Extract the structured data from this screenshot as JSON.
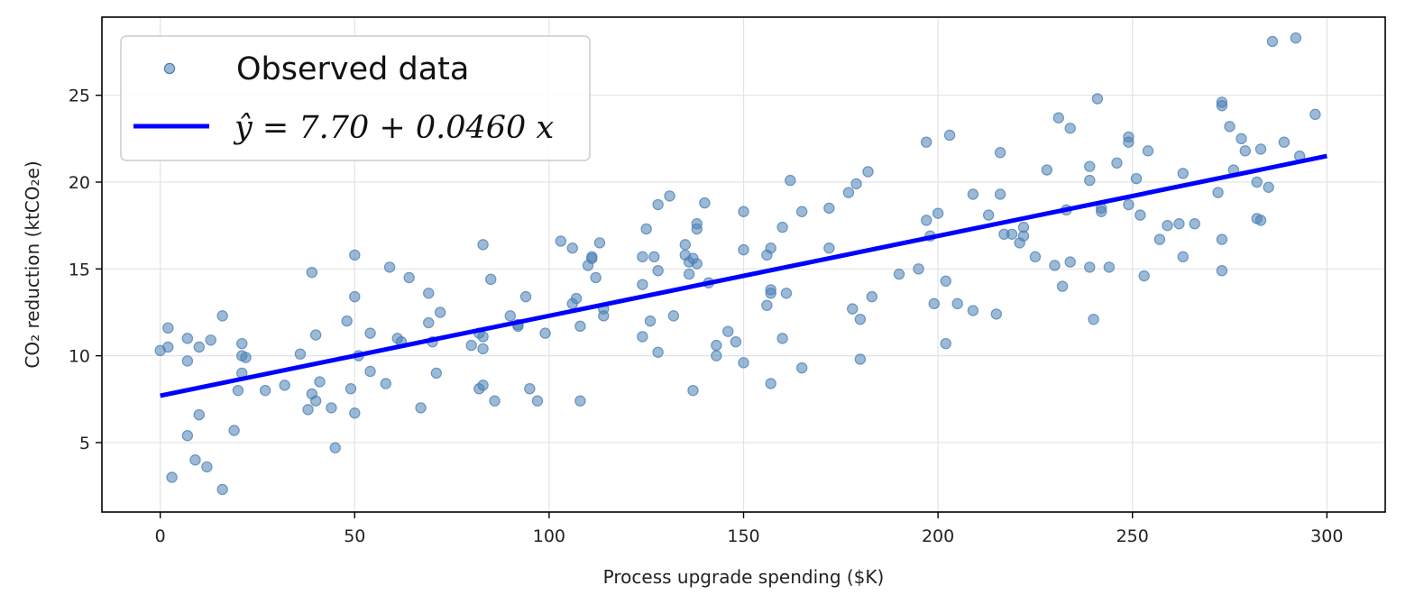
{
  "chart_data": {
    "type": "scatter",
    "xlabel": "Process upgrade spending ($K)",
    "ylabel": "CO₂ reduction (ktCO₂e)",
    "xlim": [
      -15,
      315
    ],
    "ylim": [
      1,
      29.5
    ],
    "xticks": [
      0,
      50,
      100,
      150,
      200,
      250,
      300
    ],
    "yticks": [
      5,
      10,
      15,
      20,
      25
    ],
    "grid": true,
    "legend_position": "top-left",
    "colors": {
      "points": "#4a7fb5",
      "fit": "#0000ff"
    },
    "series": [
      {
        "name": "Observed data",
        "kind": "scatter",
        "points": [
          [
            0,
            10.3
          ],
          [
            2,
            10.5
          ],
          [
            2,
            11.6
          ],
          [
            3,
            3.0
          ],
          [
            7,
            11.0
          ],
          [
            7,
            9.7
          ],
          [
            7,
            5.4
          ],
          [
            9,
            4.0
          ],
          [
            10,
            6.6
          ],
          [
            10,
            10.5
          ],
          [
            12,
            3.6
          ],
          [
            13,
            10.9
          ],
          [
            16,
            2.3
          ],
          [
            16,
            12.3
          ],
          [
            19,
            5.7
          ],
          [
            20,
            8.0
          ],
          [
            21,
            10.7
          ],
          [
            21,
            9.0
          ],
          [
            21,
            10.0
          ],
          [
            22,
            9.9
          ],
          [
            27,
            8.0
          ],
          [
            32,
            8.3
          ],
          [
            36,
            10.1
          ],
          [
            38,
            6.9
          ],
          [
            39,
            7.8
          ],
          [
            39,
            14.8
          ],
          [
            40,
            7.4
          ],
          [
            40,
            11.2
          ],
          [
            41,
            8.5
          ],
          [
            44,
            7.0
          ],
          [
            45,
            4.7
          ],
          [
            48,
            12.0
          ],
          [
            49,
            8.1
          ],
          [
            50,
            6.7
          ],
          [
            50,
            13.4
          ],
          [
            50,
            15.8
          ],
          [
            51,
            10.0
          ],
          [
            54,
            11.3
          ],
          [
            54,
            9.1
          ],
          [
            58,
            8.4
          ],
          [
            59,
            15.1
          ],
          [
            61,
            11.0
          ],
          [
            62,
            10.8
          ],
          [
            64,
            14.5
          ],
          [
            67,
            7.0
          ],
          [
            69,
            13.6
          ],
          [
            69,
            11.9
          ],
          [
            70,
            10.8
          ],
          [
            71,
            9.0
          ],
          [
            72,
            12.5
          ],
          [
            80,
            10.6
          ],
          [
            82,
            8.1
          ],
          [
            82,
            11.3
          ],
          [
            83,
            16.4
          ],
          [
            83,
            11.1
          ],
          [
            83,
            8.3
          ],
          [
            83,
            10.4
          ],
          [
            85,
            14.4
          ],
          [
            86,
            7.4
          ],
          [
            90,
            12.3
          ],
          [
            92,
            11.8
          ],
          [
            92,
            11.7
          ],
          [
            94,
            13.4
          ],
          [
            95,
            8.1
          ],
          [
            97,
            7.4
          ],
          [
            99,
            11.3
          ],
          [
            103,
            16.6
          ],
          [
            106,
            13.0
          ],
          [
            106,
            16.2
          ],
          [
            107,
            13.3
          ],
          [
            108,
            11.7
          ],
          [
            108,
            7.4
          ],
          [
            110,
            15.2
          ],
          [
            111,
            15.7
          ],
          [
            111,
            15.6
          ],
          [
            112,
            14.5
          ],
          [
            113,
            16.5
          ],
          [
            114,
            12.3
          ],
          [
            114,
            12.7
          ],
          [
            124,
            14.1
          ],
          [
            124,
            11.1
          ],
          [
            124,
            15.7
          ],
          [
            125,
            17.3
          ],
          [
            126,
            12.0
          ],
          [
            127,
            15.7
          ],
          [
            128,
            18.7
          ],
          [
            128,
            10.2
          ],
          [
            128,
            14.9
          ],
          [
            131,
            19.2
          ],
          [
            132,
            12.3
          ],
          [
            135,
            16.4
          ],
          [
            135,
            15.8
          ],
          [
            136,
            15.4
          ],
          [
            136,
            14.7
          ],
          [
            137,
            15.6
          ],
          [
            137,
            8.0
          ],
          [
            138,
            15.3
          ],
          [
            138,
            17.6
          ],
          [
            138,
            17.3
          ],
          [
            140,
            18.8
          ],
          [
            141,
            14.2
          ],
          [
            143,
            10.0
          ],
          [
            143,
            10.6
          ],
          [
            146,
            11.4
          ],
          [
            148,
            10.8
          ],
          [
            150,
            9.6
          ],
          [
            150,
            16.1
          ],
          [
            150,
            18.3
          ],
          [
            156,
            15.8
          ],
          [
            156,
            12.9
          ],
          [
            157,
            13.8
          ],
          [
            157,
            16.2
          ],
          [
            157,
            13.6
          ],
          [
            157,
            8.4
          ],
          [
            160,
            11.0
          ],
          [
            160,
            17.4
          ],
          [
            161,
            13.6
          ],
          [
            162,
            20.1
          ],
          [
            165,
            18.3
          ],
          [
            165,
            9.3
          ],
          [
            172,
            18.5
          ],
          [
            172,
            16.2
          ],
          [
            177,
            19.4
          ],
          [
            178,
            12.7
          ],
          [
            179,
            19.9
          ],
          [
            180,
            12.1
          ],
          [
            180,
            9.8
          ],
          [
            182,
            20.6
          ],
          [
            183,
            13.4
          ],
          [
            190,
            14.7
          ],
          [
            195,
            15.0
          ],
          [
            197,
            22.3
          ],
          [
            197,
            17.8
          ],
          [
            198,
            16.9
          ],
          [
            199,
            13.0
          ],
          [
            200,
            18.2
          ],
          [
            202,
            14.3
          ],
          [
            202,
            10.7
          ],
          [
            203,
            22.7
          ],
          [
            205,
            13.0
          ],
          [
            209,
            12.6
          ],
          [
            209,
            19.3
          ],
          [
            213,
            18.1
          ],
          [
            215,
            12.4
          ],
          [
            216,
            21.7
          ],
          [
            216,
            19.3
          ],
          [
            217,
            17.0
          ],
          [
            219,
            17.0
          ],
          [
            221,
            16.5
          ],
          [
            222,
            17.4
          ],
          [
            222,
            16.9
          ],
          [
            225,
            15.7
          ],
          [
            228,
            20.7
          ],
          [
            230,
            15.2
          ],
          [
            231,
            23.7
          ],
          [
            232,
            14.0
          ],
          [
            233,
            18.4
          ],
          [
            234,
            15.4
          ],
          [
            234,
            23.1
          ],
          [
            239,
            20.9
          ],
          [
            239,
            20.1
          ],
          [
            239,
            15.1
          ],
          [
            240,
            12.1
          ],
          [
            241,
            24.8
          ],
          [
            242,
            18.5
          ],
          [
            242,
            18.3
          ],
          [
            244,
            15.1
          ],
          [
            246,
            21.1
          ],
          [
            249,
            22.6
          ],
          [
            249,
            22.3
          ],
          [
            249,
            18.7
          ],
          [
            251,
            20.2
          ],
          [
            252,
            18.1
          ],
          [
            253,
            14.6
          ],
          [
            254,
            21.8
          ],
          [
            257,
            16.7
          ],
          [
            259,
            17.5
          ],
          [
            262,
            17.6
          ],
          [
            263,
            15.7
          ],
          [
            263,
            20.5
          ],
          [
            266,
            17.6
          ],
          [
            272,
            19.4
          ],
          [
            273,
            24.6
          ],
          [
            273,
            24.4
          ],
          [
            273,
            14.9
          ],
          [
            273,
            16.7
          ],
          [
            275,
            23.2
          ],
          [
            276,
            20.7
          ],
          [
            278,
            22.5
          ],
          [
            279,
            21.8
          ],
          [
            282,
            17.9
          ],
          [
            282,
            20.0
          ],
          [
            283,
            17.8
          ],
          [
            283,
            21.9
          ],
          [
            285,
            19.7
          ],
          [
            286,
            28.1
          ],
          [
            289,
            22.3
          ],
          [
            292,
            28.3
          ],
          [
            293,
            21.5
          ],
          [
            297,
            23.9
          ]
        ]
      },
      {
        "name": "ŷ = 7.70 + 0.0460 x",
        "kind": "line",
        "intercept": 7.7,
        "slope": 0.046,
        "x_range": [
          0,
          300
        ]
      }
    ]
  }
}
